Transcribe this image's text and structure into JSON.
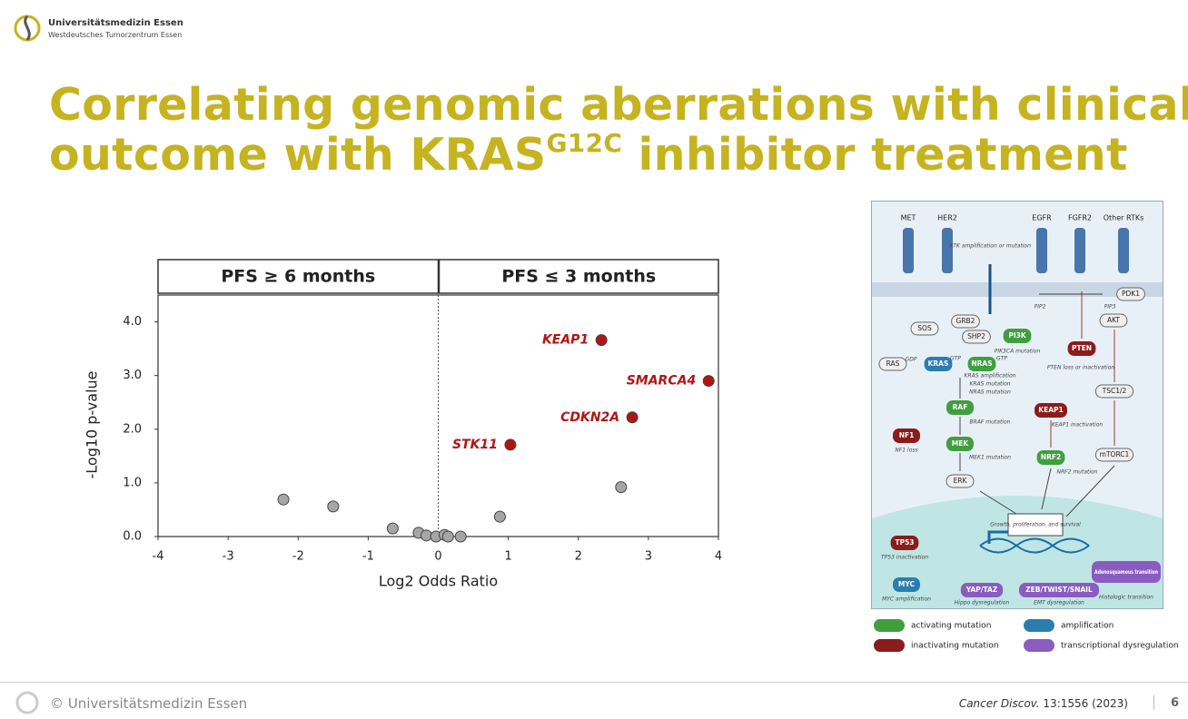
{
  "header": {
    "org": "Universitätsmedizin Essen",
    "sub": "Westdeutsches Tumorzentrum Essen"
  },
  "title": {
    "line1": "Correlating genomic aberrations with clinical",
    "line2_start": "outcome with KRAS",
    "line2_sup": "G12C",
    "line2_end": " inhibitor treatment"
  },
  "chart_data": {
    "type": "scatter",
    "panels": [
      "PFS ≥ 6 months",
      "PFS ≤ 3 months"
    ],
    "xlabel": "Log2 Odds Ratio",
    "ylabel": "-Log10 p-value",
    "xlim": [
      -4,
      4
    ],
    "xticks": [
      -4,
      -3,
      -2,
      -1,
      0,
      1,
      2,
      3,
      4
    ],
    "ylim": [
      0,
      4.5
    ],
    "yticks": [
      {
        "value": 0,
        "label": "0.0"
      },
      {
        "value": 1,
        "label": "1.0"
      },
      {
        "value": 2,
        "label": "2.0"
      },
      {
        "value": 3,
        "label": "3.0"
      },
      {
        "value": 4,
        "label": "4.0"
      }
    ],
    "series": [
      {
        "color": "#a6a6a6",
        "x": [
          -2.21,
          -1.5,
          -0.65,
          -0.28,
          -0.17,
          -0.03,
          0.09,
          0.14,
          0.32,
          0.88,
          2.61
        ],
        "values": [
          0.69,
          0.56,
          0.15,
          0.07,
          0.02,
          0.0,
          0.03,
          0.0,
          0.0,
          0.37,
          0.92
        ]
      },
      {
        "color": "#b01515",
        "x": [
          2.33,
          3.86,
          2.77,
          1.03
        ],
        "values": [
          3.66,
          2.9,
          2.22,
          1.71
        ],
        "point_labels": [
          "KEAP1",
          "SMARCA4",
          "CDKN2A",
          "STK11"
        ]
      }
    ]
  },
  "diagram": {
    "receptors": [
      "MET",
      "HER2",
      "EGFR",
      "FGFR2",
      "Other RTKs"
    ],
    "nodes": [
      {
        "label": "SOS",
        "color": "#efefef"
      },
      {
        "label": "GRB2",
        "color": "#efefef"
      },
      {
        "label": "SHP2",
        "color": "#efefef"
      },
      {
        "label": "PI3K",
        "color": "#3f9f3f"
      },
      {
        "label": "PDK1",
        "color": "#efefef"
      },
      {
        "label": "AKT",
        "color": "#efefef"
      },
      {
        "label": "PTEN",
        "color": "#8b1c1c"
      },
      {
        "label": "TSC1/2",
        "color": "#efefef"
      },
      {
        "label": "RAS",
        "color": "#efefef"
      },
      {
        "label": "KRAS",
        "color": "#2b7db0"
      },
      {
        "label": "NRAS",
        "color": "#3f9f3f"
      },
      {
        "label": "RAF",
        "color": "#3f9f3f"
      },
      {
        "label": "NF1",
        "color": "#8b1c1c"
      },
      {
        "label": "KEAP1",
        "color": "#8b1c1c"
      },
      {
        "label": "MEK",
        "color": "#3f9f3f"
      },
      {
        "label": "NRF2",
        "color": "#3f9f3f"
      },
      {
        "label": "ERK",
        "color": "#efefef"
      },
      {
        "label": "mTORC1",
        "color": "#efefef"
      },
      {
        "label": "TP53",
        "color": "#8b1c1c"
      },
      {
        "label": "MYC",
        "color": "#2b7db0"
      },
      {
        "label": "YAP/TAZ",
        "color": "#8a5cc0"
      },
      {
        "label": "ZEB/TWIST/SNAIL",
        "color": "#8a5cc0"
      },
      {
        "label": "Adenosquamous transition",
        "color": "#8a5cc0"
      }
    ],
    "notes": [
      "RTK amplification or mutation",
      "PIK3CA mutation",
      "PIP2",
      "PIP3",
      "PTEN loss or inactivation",
      "GDP",
      "GTP",
      "GTP",
      "KRAS amplification",
      "KRAS mutation",
      "NRAS mutation",
      "BRAF mutation",
      "NF1 loss",
      "KEAP1 inactivation",
      "MEK1 mutation",
      "NRF2 mutation",
      "TP53 inactivation",
      "MYC amplification",
      "Hippo dysregulation",
      "EMT dysregulation",
      "Histologic transition",
      "Growth, proliferation, and survival"
    ],
    "legend": [
      {
        "label": "activating mutation",
        "color": "#3f9f3f"
      },
      {
        "label": "amplification",
        "color": "#2b7db0"
      },
      {
        "label": "inactivating mutation",
        "color": "#8b1c1c"
      },
      {
        "label": "transcriptional dysregulation",
        "color": "#8a5cc0"
      }
    ]
  },
  "footer": {
    "copyright": "© Universitätsmedizin Essen",
    "journal": "Cancer Discov.",
    "citation": " 13:1556 (2023)",
    "page": "6"
  }
}
